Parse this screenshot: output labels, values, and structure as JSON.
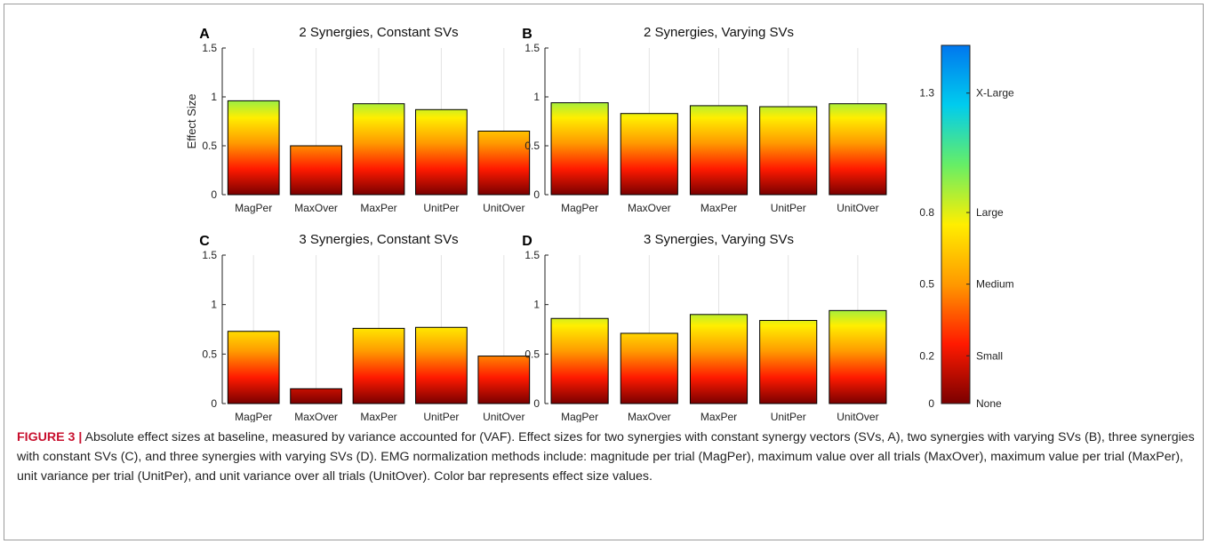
{
  "figure": {
    "colorbar": {
      "ticks": [
        {
          "value": 0,
          "tick_label": "0",
          "category": "None"
        },
        {
          "value": 0.2,
          "tick_label": "0.2",
          "category": "Small"
        },
        {
          "value": 0.5,
          "tick_label": "0.5",
          "category": "Medium"
        },
        {
          "value": 0.8,
          "tick_label": "0.8",
          "category": "Large"
        },
        {
          "value": 1.3,
          "tick_label": "1.3",
          "category": "X-Large"
        }
      ],
      "range": [
        0,
        1.5
      ],
      "colors": [
        "#7a0000",
        "#ff1a00",
        "#ff9900",
        "#ffee00",
        "#66ee66",
        "#00ccee",
        "#0077ee"
      ]
    }
  },
  "caption": {
    "label": "FIGURE 3 |",
    "text": " Absolute effect sizes at baseline, measured by variance accounted for (VAF). Effect sizes for two synergies with constant synergy vectors (SVs, A), two synergies with varying SVs (B), three synergies with constant SVs (C), and three synergies with varying SVs (D). EMG normalization methods include: magnitude per trial (MagPer), maximum value over all trials (MaxOver), maximum value per trial (MaxPer), unit variance per trial (UnitPer), and unit variance over all trials (UnitOver). Color bar represents effect size values."
  },
  "chart_data": [
    {
      "type": "bar",
      "panel": "A",
      "title": "2 Synergies, Constant SVs",
      "ylabel": "Effect Size",
      "categories": [
        "MagPer",
        "MaxOver",
        "MaxPer",
        "UnitPer",
        "UnitOver"
      ],
      "values": [
        0.96,
        0.5,
        0.93,
        0.87,
        0.65
      ],
      "ylim": [
        0,
        1.5
      ],
      "yticks": [
        "0",
        "0.5",
        "1",
        "1.5"
      ],
      "grid": "vertical"
    },
    {
      "type": "bar",
      "panel": "B",
      "title": "2 Synergies, Varying SVs",
      "ylabel": "",
      "categories": [
        "MagPer",
        "MaxOver",
        "MaxPer",
        "UnitPer",
        "UnitOver"
      ],
      "values": [
        0.94,
        0.83,
        0.91,
        0.9,
        0.93
      ],
      "ylim": [
        0,
        1.5
      ],
      "yticks": [
        "0",
        "0.5",
        "1",
        "1.5"
      ],
      "grid": "vertical"
    },
    {
      "type": "bar",
      "panel": "C",
      "title": "3 Synergies, Constant SVs",
      "ylabel": "",
      "categories": [
        "MagPer",
        "MaxOver",
        "MaxPer",
        "UnitPer",
        "UnitOver"
      ],
      "values": [
        0.73,
        0.15,
        0.76,
        0.77,
        0.48
      ],
      "ylim": [
        0,
        1.5
      ],
      "yticks": [
        "0",
        "0.5",
        "1",
        "1.5"
      ],
      "grid": "vertical"
    },
    {
      "type": "bar",
      "panel": "D",
      "title": "3 Synergies, Varying SVs",
      "ylabel": "",
      "categories": [
        "MagPer",
        "MaxOver",
        "MaxPer",
        "UnitPer",
        "UnitOver"
      ],
      "values": [
        0.86,
        0.71,
        0.9,
        0.84,
        0.94
      ],
      "ylim": [
        0,
        1.5
      ],
      "yticks": [
        "0",
        "0.5",
        "1",
        "1.5"
      ],
      "grid": "vertical"
    }
  ]
}
